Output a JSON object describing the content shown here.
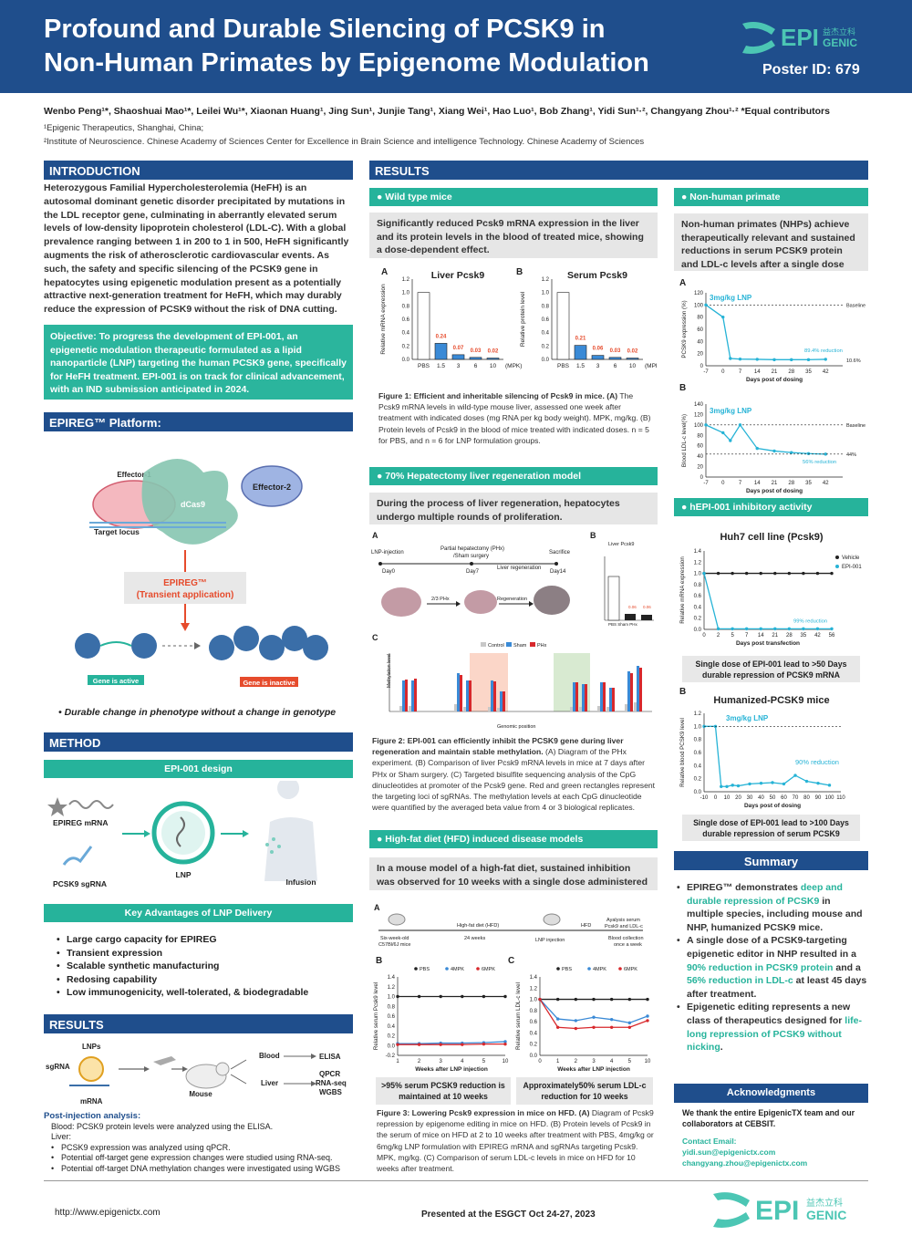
{
  "header": {
    "title_line1": "Profound and Durable Silencing of PCSK9 in",
    "title_line2": "Non-Human Primates by Epigenome Modulation",
    "poster_id": "Poster ID: 679",
    "logo_text": "EPI",
    "logo_sub": "GENIC",
    "logo_cn": "益杰立科"
  },
  "authors": "Wenbo Peng¹*, Shaoshuai Mao¹*, Leilei Wu¹*, Xiaonan Huang¹, Jing Sun¹, Junjie Tang¹, Xiang Wei¹, Hao Luo¹, Bob Zhang¹, Yidi Sun¹·², Changyang Zhou¹·²  *Equal contributors",
  "affiliation1": "¹Epigenic Therapeutics, Shanghai, China;",
  "affiliation2": "²Institute of Neuroscience. Chinese Academy of Sciences Center for Excellence in Brain Science and intelligence Technology. Chinese Academy of Sciences",
  "introduction": {
    "heading": "INTRODUCTION",
    "body": "Heterozygous Familial Hypercholesterolemia (HeFH) is an autosomal dominant genetic disorder precipitated by mutations in the LDL receptor gene, culminating in aberrantly elevated serum levels of low-density lipoprotein cholesterol (LDL-C). With a global prevalence ranging between 1 in 200 to 1 in 500, HeFH significantly augments the risk of atherosclerotic cardiovascular events. As such, the safety and specific silencing of the PCSK9 gene in hepatocytes using epigenetic modulation present as a potentially attractive next-generation treatment for HeFH, which may durably reduce the expression of PCSK9 without the risk of DNA cutting.",
    "objective": "Objective: To progress the development of EPI-001, an epigenetic modulation therapeutic formulated as a lipid nanoparticle (LNP) targeting the human PCSK9 gene, specifically for HeFH treatment. EPI-001 is on track for clinical advancement, with an IND submission anticipated in 2024."
  },
  "platform": {
    "heading": "EPIREG™ Platform:",
    "effector1": "Effector-1",
    "effector2": "Effector-2",
    "dcas9": "dCas9",
    "target_locus": "Target locus",
    "epireg_box1": "EPIREG™",
    "epireg_box2": "(Transient application)",
    "gene_active": "Gene is active",
    "gene_inactive": "Gene is inactive",
    "tagline": "• Durable change in phenotype without a change in genotype"
  },
  "method": {
    "heading": "METHOD",
    "design_head": "EPI-001 design",
    "epireg_mrna": "EPIREG mRNA",
    "pcsk9_sgrna": "PCSK9 sgRNA",
    "lnp": "LNP",
    "infusion": "Infusion",
    "advantages_head": "Key Advantages of LNP Delivery",
    "advantages": [
      "Large cargo capacity for EPIREG",
      "Transient expression",
      "Scalable synthetic manufacturing",
      "Redosing capability",
      "Low immunogenicity, well-tolerated, & biodegradable"
    ]
  },
  "results_left": {
    "heading": "RESULTS",
    "lnps": "LNPs",
    "sgrna": "sgRNA",
    "mrna": "mRNA",
    "mouse": "Mouse",
    "blood": "Blood",
    "liver": "Liver",
    "elisa": "ELISA",
    "qpcr": "QPCR",
    "rnaseq": "RNA-seq",
    "wgbs": "WGBS",
    "post_head": "Post-injection analysis:",
    "post_blood": "Blood: PCSK9 protein levels were analyzed using the ELISA.",
    "post_liver": "Liver:",
    "post_items": [
      "PCSK9 expression was analyzed using qPCR.",
      "Potential off-target gene expression changes were studied using RNA-seq.",
      "Potential off-target DNA methylation changes were investigated using WGBS"
    ]
  },
  "results": {
    "heading": "RESULTS",
    "wt_head": "Wild type mice",
    "wt_text": "Significantly reduced Pcsk9 mRNA expression in the liver and its protein levels in the blood of treated mice, showing a dose-dependent effect.",
    "fig1_caption_bold": "Figure 1: Efficient and inheritable silencing of Pcsk9 in mice. (A)",
    "fig1_caption": " The Pcsk9 mRNA levels in wild-type mouse liver, assessed one week after treatment with indicated doses (mg RNA per kg body weight). MPK, mg/kg. (B) Protein levels of Pcsk9 in the blood of mice treated with indicated doses. n = 5 for PBS, and n = 6 for LNP formulation groups.",
    "hep_head": "70% Hepatectomy liver regeneration model",
    "hep_text": "During the process of liver regeneration, hepatocytes undergo multiple rounds of proliferation.",
    "fig2_caption_bold": "Figure 2: EPI-001 can efficiently inhibit the PCSK9 gene during liver regeneration and maintain stable methylation.",
    "fig2_caption": " (A) Diagram of the PHx experiment. (B) Comparison of liver Pcsk9 mRNA levels in mice at 7 days after PHx or Sham surgery. (C) Targeted bisulfite sequencing analysis of the CpG dinucleotides at promoter of the Pcsk9 gene. Red and green rectangles represent the targeting loci of sgRNAs. The methylation levels at each CpG dinucleotide were quantified by the averaged beta value from 4 or 3 biological replicates.",
    "hfd_head": "High-fat diet (HFD) induced disease models",
    "hfd_text": "In a mouse model of a high-fat diet, sustained inhibition was observed for 10 weeks with a single dose administered",
    "hfd_note1": ">95% serum PCSK9 reduction is maintained at 10 weeks",
    "hfd_note2": "Approximately50% serum LDL-c reduction for 10 weeks",
    "fig3_caption_bold": "Figure 3: Lowering Pcsk9 expression in mice on HFD. (A)",
    "fig3_caption": " Diagram of Pcsk9 repression by epigenome editing in mice on HFD. (B) Protein levels of Pcsk9 in the serum of mice on HFD at 2 to 10 weeks after treatment with PBS, 4mg/kg or 6mg/kg LNP formulation with EPIREG mRNA and sgRNAs targeting Pcsk9. MPK, mg/kg. (C) Comparison of serum LDL-c levels in mice on HFD for 10 weeks after treatment."
  },
  "nhp": {
    "head": "Non-human primate",
    "text": "Non-human primates (NHPs) achieve therapeutically relevant and sustained reductions in serum PCSK9 protein and LDL-c levels after a single dose",
    "hepi_head": "hEPI-001 inhibitory activity",
    "huh7_title": "Huh7 cell line (Pcsk9)",
    "huh7_note": "Single dose of EPI-001 lead to >50 Days durable repression of PCSK9 mRNA",
    "hum_title": "Humanized-PCSK9 mice",
    "hum_note": "Single dose of EPI-001 lead to >100 Days durable repression of serum PCSK9"
  },
  "summary": {
    "head": "Summary",
    "items": [
      {
        "pre": "EPIREG™ demonstrates ",
        "hl": "deep and durable repression of PCSK9",
        "post": " in multiple species, including mouse and NHP, humanized PCSK9 mice."
      },
      {
        "pre": "A single dose of a PCSK9-targeting epigenetic editor in NHP resulted in a ",
        "hl": "90% reduction in PCSK9 protein",
        "mid": " and a ",
        "hl2": "56% reduction in LDL-c",
        "post": " at least 45 days after treatment."
      },
      {
        "pre": "Epigenetic editing represents a new class of therapeutics designed for ",
        "hl": "life-long repression of PCSK9 without nicking",
        "post": "."
      }
    ]
  },
  "ack": {
    "head": "Acknowledgments",
    "text": "We thank the entire EpigenicTX team and our collaborators at CEBSIT.",
    "contact_head": "Contact Email:",
    "email1": "yidi.sun@epigenictx.com",
    "email2": "changyang.zhou@epigenictx.com"
  },
  "footer": {
    "url": "http://www.epigenictx.com",
    "presented": "Presented at the ESGCT Oct 24-27, 2023"
  },
  "chart_data": [
    {
      "type": "bar",
      "title": "Liver Pcsk9",
      "ylabel": "Relative mRNA expression",
      "categories": [
        "PBS",
        "1.5",
        "3",
        "6",
        "10"
      ],
      "values": [
        1.0,
        0.24,
        0.07,
        0.03,
        0.02
      ],
      "labels": [
        "",
        "0.24",
        "0.07",
        "0.03",
        "0.02"
      ],
      "ylim": [
        0,
        1.2
      ],
      "xunit": "(MPK)"
    },
    {
      "type": "bar",
      "title": "Serum Pcsk9",
      "ylabel": "Relative protein level",
      "categories": [
        "PBS",
        "1.5",
        "3",
        "6",
        "10"
      ],
      "values": [
        1.0,
        0.21,
        0.06,
        0.03,
        0.02
      ],
      "labels": [
        "",
        "0.21",
        "0.06",
        "0.03",
        "0.02"
      ],
      "ylim": [
        0,
        1.2
      ],
      "xunit": "(MPK)"
    },
    {
      "type": "line",
      "ylabel": "PCSK9 expression (%)",
      "xlabel": "Days post of dosing",
      "series_label": "3mg/kg LNP",
      "x": [
        -7,
        0,
        3,
        7,
        14,
        21,
        28,
        35,
        42
      ],
      "values": [
        100,
        80,
        12,
        11,
        10.6,
        10,
        10,
        10,
        10.6
      ],
      "baseline": 100,
      "annotation": "89.4% reduction",
      "end_label": "10.6%",
      "ylim": [
        0,
        120
      ]
    },
    {
      "type": "line",
      "ylabel": "Blood LDL-c level(%)",
      "xlabel": "Days post of dosing",
      "series_label": "3mg/kg LNP",
      "x": [
        -7,
        0,
        3,
        7,
        14,
        21,
        28,
        35,
        42
      ],
      "values": [
        100,
        85,
        70,
        100,
        55,
        50,
        47,
        45,
        44
      ],
      "baseline": 100,
      "annotation": "56% reduction",
      "end_label": "44%",
      "ylim": [
        0,
        140
      ]
    },
    {
      "type": "line",
      "ylabel": "Relative mRNA expression",
      "xlabel": "Days post transfection",
      "series": [
        {
          "name": "Vehicle",
          "values": [
            1.0,
            1.0,
            1.0,
            1.0,
            1.0,
            1.0,
            1.0,
            1.0,
            1.0,
            1.0
          ]
        },
        {
          "name": "EPI-001",
          "values": [
            1.0,
            0.01,
            0.01,
            0.01,
            0.01,
            0.01,
            0.01,
            0.01,
            0.01,
            0.01
          ]
        }
      ],
      "x": [
        0,
        7,
        14,
        21,
        28,
        35,
        42,
        49,
        56,
        63
      ],
      "annotation": "99% reduction",
      "ylim": [
        0,
        1.4
      ]
    },
    {
      "type": "line",
      "ylabel": "Relative blood PCSK9 level",
      "xlabel": "Days post of dosing",
      "series_label": "3mg/kg LNP",
      "x": [
        -10,
        0,
        5,
        10,
        15,
        20,
        30,
        40,
        50,
        60,
        70,
        80,
        90,
        100
      ],
      "values": [
        1.0,
        1.0,
        0.08,
        0.08,
        0.1,
        0.09,
        0.12,
        0.13,
        0.14,
        0.12,
        0.25,
        0.16,
        0.13,
        0.1
      ],
      "annotation": "90% reduction",
      "ylim": [
        0,
        1.2
      ]
    },
    {
      "type": "line",
      "ylabel": "Relative serum Pcsk9 level",
      "xlabel": "Weeks after LNP injection",
      "series": [
        {
          "name": "PBS",
          "values": [
            1.0,
            1.0,
            1.0,
            1.0,
            1.0,
            1.0
          ]
        },
        {
          "name": "4MPK",
          "values": [
            0.04,
            0.04,
            0.05,
            0.05,
            0.06,
            0.08
          ]
        },
        {
          "name": "6MPK",
          "values": [
            0.02,
            0.02,
            0.02,
            0.02,
            0.03,
            0.03
          ]
        }
      ],
      "categories": [
        "1",
        "2",
        "3",
        "4",
        "5",
        "10"
      ],
      "ylim": [
        -0.2,
        1.4
      ]
    },
    {
      "type": "line",
      "ylabel": "Relative serum LDL-c level",
      "xlabel": "Weeks after LNP injection",
      "series": [
        {
          "name": "PBS",
          "values": [
            1.0,
            1.0,
            1.0,
            1.0,
            1.0,
            1.0,
            1.0
          ]
        },
        {
          "name": "4MPK",
          "values": [
            1.0,
            0.65,
            0.62,
            0.68,
            0.64,
            0.58,
            0.7
          ]
        },
        {
          "name": "6MPK",
          "values": [
            1.0,
            0.5,
            0.48,
            0.5,
            0.5,
            0.5,
            0.62
          ]
        }
      ],
      "categories": [
        "0",
        "1",
        "2",
        "3",
        "4",
        "5",
        "10"
      ],
      "ylim": [
        0,
        1.4
      ]
    }
  ]
}
